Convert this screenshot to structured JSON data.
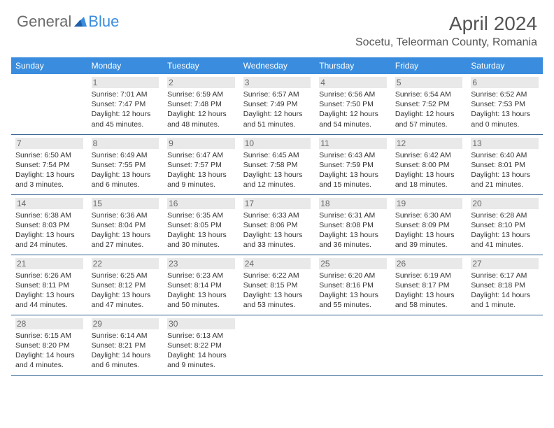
{
  "logo": {
    "text1": "General",
    "text2": "Blue",
    "color1": "#6b6b6b",
    "color2": "#3a8dde"
  },
  "title": "April 2024",
  "location": "Socetu, Teleorman County, Romania",
  "colors": {
    "header_bg": "#3a8dde",
    "header_fg": "#ffffff",
    "row_border": "#2f5f8f",
    "daynum_bg": "#e9e9e9",
    "text": "#333333",
    "muted": "#6b6b6b"
  },
  "days_of_week": [
    "Sunday",
    "Monday",
    "Tuesday",
    "Wednesday",
    "Thursday",
    "Friday",
    "Saturday"
  ],
  "weeks": [
    [
      null,
      {
        "n": "1",
        "sr": "7:01 AM",
        "ss": "7:47 PM",
        "dl": "12 hours and 45 minutes."
      },
      {
        "n": "2",
        "sr": "6:59 AM",
        "ss": "7:48 PM",
        "dl": "12 hours and 48 minutes."
      },
      {
        "n": "3",
        "sr": "6:57 AM",
        "ss": "7:49 PM",
        "dl": "12 hours and 51 minutes."
      },
      {
        "n": "4",
        "sr": "6:56 AM",
        "ss": "7:50 PM",
        "dl": "12 hours and 54 minutes."
      },
      {
        "n": "5",
        "sr": "6:54 AM",
        "ss": "7:52 PM",
        "dl": "12 hours and 57 minutes."
      },
      {
        "n": "6",
        "sr": "6:52 AM",
        "ss": "7:53 PM",
        "dl": "13 hours and 0 minutes."
      }
    ],
    [
      {
        "n": "7",
        "sr": "6:50 AM",
        "ss": "7:54 PM",
        "dl": "13 hours and 3 minutes."
      },
      {
        "n": "8",
        "sr": "6:49 AM",
        "ss": "7:55 PM",
        "dl": "13 hours and 6 minutes."
      },
      {
        "n": "9",
        "sr": "6:47 AM",
        "ss": "7:57 PM",
        "dl": "13 hours and 9 minutes."
      },
      {
        "n": "10",
        "sr": "6:45 AM",
        "ss": "7:58 PM",
        "dl": "13 hours and 12 minutes."
      },
      {
        "n": "11",
        "sr": "6:43 AM",
        "ss": "7:59 PM",
        "dl": "13 hours and 15 minutes."
      },
      {
        "n": "12",
        "sr": "6:42 AM",
        "ss": "8:00 PM",
        "dl": "13 hours and 18 minutes."
      },
      {
        "n": "13",
        "sr": "6:40 AM",
        "ss": "8:01 PM",
        "dl": "13 hours and 21 minutes."
      }
    ],
    [
      {
        "n": "14",
        "sr": "6:38 AM",
        "ss": "8:03 PM",
        "dl": "13 hours and 24 minutes."
      },
      {
        "n": "15",
        "sr": "6:36 AM",
        "ss": "8:04 PM",
        "dl": "13 hours and 27 minutes."
      },
      {
        "n": "16",
        "sr": "6:35 AM",
        "ss": "8:05 PM",
        "dl": "13 hours and 30 minutes."
      },
      {
        "n": "17",
        "sr": "6:33 AM",
        "ss": "8:06 PM",
        "dl": "13 hours and 33 minutes."
      },
      {
        "n": "18",
        "sr": "6:31 AM",
        "ss": "8:08 PM",
        "dl": "13 hours and 36 minutes."
      },
      {
        "n": "19",
        "sr": "6:30 AM",
        "ss": "8:09 PM",
        "dl": "13 hours and 39 minutes."
      },
      {
        "n": "20",
        "sr": "6:28 AM",
        "ss": "8:10 PM",
        "dl": "13 hours and 41 minutes."
      }
    ],
    [
      {
        "n": "21",
        "sr": "6:26 AM",
        "ss": "8:11 PM",
        "dl": "13 hours and 44 minutes."
      },
      {
        "n": "22",
        "sr": "6:25 AM",
        "ss": "8:12 PM",
        "dl": "13 hours and 47 minutes."
      },
      {
        "n": "23",
        "sr": "6:23 AM",
        "ss": "8:14 PM",
        "dl": "13 hours and 50 minutes."
      },
      {
        "n": "24",
        "sr": "6:22 AM",
        "ss": "8:15 PM",
        "dl": "13 hours and 53 minutes."
      },
      {
        "n": "25",
        "sr": "6:20 AM",
        "ss": "8:16 PM",
        "dl": "13 hours and 55 minutes."
      },
      {
        "n": "26",
        "sr": "6:19 AM",
        "ss": "8:17 PM",
        "dl": "13 hours and 58 minutes."
      },
      {
        "n": "27",
        "sr": "6:17 AM",
        "ss": "8:18 PM",
        "dl": "14 hours and 1 minute."
      }
    ],
    [
      {
        "n": "28",
        "sr": "6:15 AM",
        "ss": "8:20 PM",
        "dl": "14 hours and 4 minutes."
      },
      {
        "n": "29",
        "sr": "6:14 AM",
        "ss": "8:21 PM",
        "dl": "14 hours and 6 minutes."
      },
      {
        "n": "30",
        "sr": "6:13 AM",
        "ss": "8:22 PM",
        "dl": "14 hours and 9 minutes."
      },
      null,
      null,
      null,
      null
    ]
  ],
  "labels": {
    "sunrise": "Sunrise:",
    "sunset": "Sunset:",
    "daylight": "Daylight:"
  }
}
